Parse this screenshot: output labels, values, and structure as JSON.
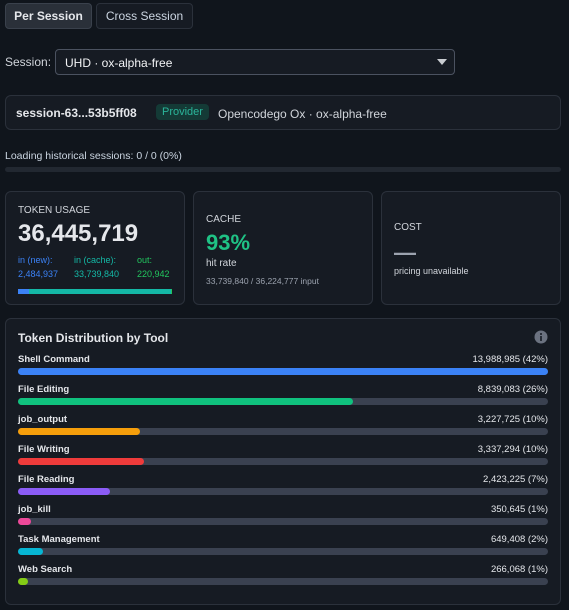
{
  "tabs": [
    "Per Session",
    "Cross Session"
  ],
  "session_select": {
    "label": "Session:",
    "value": "UHD · ox-alpha-free"
  },
  "session_card": {
    "id": "session-63...53b5ff08",
    "badge": "Provider",
    "model": "Opencodego Ox · ox-alpha-free"
  },
  "loading": "Loading historical sessions: 0 / 0 (0%)",
  "token_usage": {
    "title": "TOKEN USAGE",
    "total": "36,445,719",
    "breakdown": [
      {
        "label": "in (new):",
        "value": 2484937,
        "value_label": "2,484,937",
        "color": "#3b82f6"
      },
      {
        "label": "in (cache):",
        "value": 33739840,
        "value_label": "33,739,840",
        "color": "#14b8a6"
      },
      {
        "label": "out:",
        "value": 220942,
        "value_label": "220,942",
        "color": "#22c55e"
      }
    ]
  },
  "cache": {
    "title": "CACHE",
    "value": "93%",
    "caption": "hit rate",
    "detail": "33,739,840 / 36,224,777 input"
  },
  "cost": {
    "title": "COST",
    "value": "—",
    "caption": "pricing unavailable"
  },
  "distribution": {
    "title": "Token Distribution by Tool",
    "tools": [
      {
        "name": "Shell Command",
        "value": 13988985,
        "value_label": "13,988,985 (42%)",
        "color": "#3b82f6"
      },
      {
        "name": "File Editing",
        "value": 8839083,
        "value_label": "8,839,083 (26%)",
        "color": "#10c27e"
      },
      {
        "name": "job_output",
        "value": 3227725,
        "value_label": "3,227,725 (10%)",
        "color": "#f59e0b"
      },
      {
        "name": "File Writing",
        "value": 3337294,
        "value_label": "3,337,294 (10%)",
        "color": "#ef3b3b"
      },
      {
        "name": "File Reading",
        "value": 2423225,
        "value_label": "2,423,225 (7%)",
        "color": "#8b5cf6"
      },
      {
        "name": "job_kill",
        "value": 350645,
        "value_label": "350,645 (1%)",
        "color": "#ec4899"
      },
      {
        "name": "Task Management",
        "value": 649408,
        "value_label": "649,408 (2%)",
        "color": "#06b6d4"
      },
      {
        "name": "Web Search",
        "value": 266068,
        "value_label": "266,068 (1%)",
        "color": "#84cc16"
      }
    ]
  }
}
